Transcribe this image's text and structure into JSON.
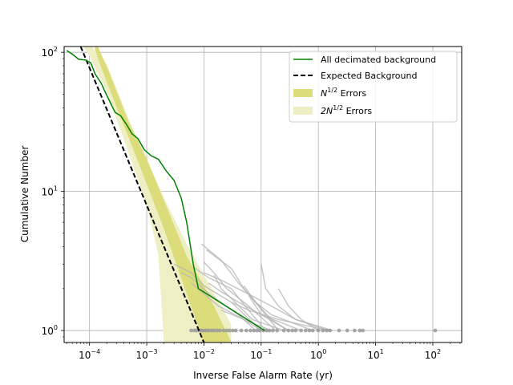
{
  "chart_data": {
    "type": "line",
    "xlabel": "Inverse False Alarm Rate (yr)",
    "ylabel": "Cumulative Number",
    "xscale": "log",
    "yscale": "log",
    "xlim": [
      3.6e-05,
      320
    ],
    "ylim": [
      0.82,
      110
    ],
    "grid": true,
    "legend_position": "top-right",
    "x_ticks": [
      {
        "value": 0.0001,
        "mantissa": "10",
        "exp": "−4"
      },
      {
        "value": 0.001,
        "mantissa": "10",
        "exp": "−3"
      },
      {
        "value": 0.01,
        "mantissa": "10",
        "exp": "−2"
      },
      {
        "value": 0.1,
        "mantissa": "10",
        "exp": "−1"
      },
      {
        "value": 1,
        "mantissa": "10",
        "exp": "0"
      },
      {
        "value": 10,
        "mantissa": "10",
        "exp": "1"
      },
      {
        "value": 100,
        "mantissa": "10",
        "exp": "2"
      }
    ],
    "y_ticks": [
      {
        "value": 1,
        "mantissa": "10",
        "exp": "0"
      },
      {
        "value": 10,
        "mantissa": "10",
        "exp": "1"
      },
      {
        "value": 100,
        "mantissa": "10",
        "exp": "2"
      }
    ],
    "legend": [
      {
        "key": "green",
        "label": "All decimated background"
      },
      {
        "key": "dashed",
        "label": "Expected Background"
      },
      {
        "key": "band1",
        "label_base": "N",
        "label_sup": "1/2",
        "label_rest": " Errors"
      },
      {
        "key": "band2",
        "label_base": "2N",
        "label_sup": "1/2",
        "label_rest": " Errors"
      }
    ],
    "colors": {
      "green": "#008000",
      "expected": "#000000",
      "band1": "#dcdc7a",
      "band2": "#efefc6",
      "gray": "#b4b4b4",
      "grid": "#b0b0b0"
    },
    "series": [
      {
        "key": "green",
        "points": [
          [
            4e-05,
            103
          ],
          [
            5e-05,
            97
          ],
          [
            6.5e-05,
            89
          ],
          [
            8.5e-05,
            88
          ],
          [
            0.000105,
            84
          ],
          [
            0.000125,
            70
          ],
          [
            0.00016,
            60
          ],
          [
            0.0002,
            49
          ],
          [
            0.00028,
            37
          ],
          [
            0.00035,
            35
          ],
          [
            0.00045,
            30
          ],
          [
            0.00055,
            26
          ],
          [
            0.0007,
            24
          ],
          [
            0.0009,
            20
          ],
          [
            0.0012,
            18
          ],
          [
            0.0016,
            17
          ],
          [
            0.0022,
            14
          ],
          [
            0.003,
            12
          ],
          [
            0.004,
            9
          ],
          [
            0.005,
            6
          ],
          [
            0.0065,
            3
          ],
          [
            0.008,
            2
          ],
          [
            0.115,
            1
          ]
        ]
      },
      {
        "key": "expected",
        "points": [
          [
            7e-05,
            110
          ],
          [
            0.01,
            0.82
          ]
        ]
      }
    ],
    "band_1sigma": [
      [
        0.000125,
        104.9,
        115.1
      ],
      [
        0.00014,
        90.4,
        109.6
      ],
      [
        0.0002,
        61.1,
        78.9
      ],
      [
        0.0005,
        23.5,
        30.5
      ],
      [
        0.001,
        11.3,
        17.2
      ],
      [
        0.002,
        5.38,
        8.62
      ],
      [
        0.005,
        1.83,
        3.42
      ],
      [
        0.01,
        0.82,
        2.1
      ],
      [
        0.025,
        0.82,
        0.97
      ],
      [
        0.03,
        0.82,
        0.82
      ]
    ],
    "band_2sigma": [
      [
        8e-05,
        108,
        135
      ],
      [
        0.0001,
        94,
        115
      ],
      [
        0.0002,
        52,
        82
      ],
      [
        0.0005,
        18,
        32
      ],
      [
        0.001,
        8,
        17
      ],
      [
        0.0016,
        3.5,
        11
      ],
      [
        0.002,
        0.82,
        9
      ],
      [
        0.005,
        0.82,
        4.2
      ],
      [
        0.01,
        0.82,
        2.5
      ],
      [
        0.02,
        0.82,
        1.5
      ],
      [
        0.03,
        0.82,
        1.1
      ]
    ],
    "decimated_series": [
      [
        [
          0.009,
          4.2
        ],
        [
          0.02,
          3.2
        ],
        [
          0.04,
          2.2
        ],
        [
          0.08,
          1.6
        ],
        [
          0.15,
          1.2
        ],
        [
          0.3,
          1
        ]
      ],
      [
        [
          0.011,
          3.8
        ],
        [
          0.03,
          2.8
        ],
        [
          0.05,
          2
        ],
        [
          0.09,
          1.5
        ],
        [
          0.2,
          1
        ]
      ],
      [
        [
          0.007,
          2.8
        ],
        [
          0.012,
          2.4
        ],
        [
          0.03,
          2
        ],
        [
          0.06,
          1.4
        ],
        [
          0.12,
          1
        ]
      ],
      [
        [
          0.006,
          2.2
        ],
        [
          0.009,
          1.9
        ],
        [
          0.018,
          1.5
        ],
        [
          0.05,
          1.2
        ],
        [
          0.15,
          1
        ]
      ],
      [
        [
          0.004,
          2.6
        ],
        [
          0.006,
          2.4
        ],
        [
          0.013,
          1.8
        ],
        [
          0.04,
          1.3
        ],
        [
          0.08,
          1
        ]
      ],
      [
        [
          0.003,
          3
        ],
        [
          0.006,
          2.6
        ],
        [
          0.01,
          2.1
        ],
        [
          0.03,
          1.6
        ],
        [
          0.1,
          1
        ]
      ],
      [
        [
          0.01,
          3.1
        ],
        [
          0.015,
          2.6
        ],
        [
          0.025,
          2
        ],
        [
          0.06,
          1.5
        ],
        [
          0.18,
          1
        ]
      ],
      [
        [
          0.015,
          2.5
        ],
        [
          0.02,
          2
        ],
        [
          0.03,
          1.7
        ],
        [
          0.07,
          1.2
        ],
        [
          0.25,
          1
        ]
      ],
      [
        [
          0.012,
          2.2
        ],
        [
          0.02,
          1.9
        ],
        [
          0.04,
          1.6
        ],
        [
          0.1,
          1.3
        ],
        [
          0.5,
          1
        ]
      ],
      [
        [
          0.05,
          2.1
        ],
        [
          0.08,
          1.6
        ],
        [
          0.15,
          1.3
        ],
        [
          0.8,
          1
        ]
      ],
      [
        [
          0.1,
          3
        ],
        [
          0.12,
          2
        ],
        [
          0.2,
          1.5
        ],
        [
          0.4,
          1.2
        ],
        [
          1.5,
          1
        ]
      ],
      [
        [
          0.2,
          2
        ],
        [
          0.3,
          1.5
        ],
        [
          0.5,
          1.2
        ],
        [
          1,
          1
        ]
      ],
      [
        [
          0.03,
          1.6
        ],
        [
          0.06,
          1.4
        ],
        [
          0.2,
          1.2
        ],
        [
          1.5,
          1
        ]
      ],
      [
        [
          0.06,
          1.8
        ],
        [
          0.1,
          1.3
        ],
        [
          0.3,
          1
        ]
      ],
      [
        [
          0.02,
          1.4
        ],
        [
          0.05,
          1.2
        ],
        [
          0.1,
          1
        ]
      ],
      [
        [
          0.01,
          2.6
        ],
        [
          0.02,
          2.3
        ],
        [
          0.05,
          1.9
        ],
        [
          0.15,
          1.5
        ],
        [
          0.4,
          1.2
        ],
        [
          1.8,
          1
        ]
      ]
    ],
    "loudest_points": [
      0.006,
      0.0068,
      0.0075,
      0.0083,
      0.009,
      0.0098,
      0.0108,
      0.012,
      0.0135,
      0.015,
      0.017,
      0.019,
      0.022,
      0.025,
      0.028,
      0.032,
      0.036,
      0.045,
      0.055,
      0.065,
      0.075,
      0.085,
      0.095,
      0.11,
      0.125,
      0.14,
      0.16,
      0.19,
      0.25,
      0.3,
      0.35,
      0.4,
      0.5,
      0.6,
      0.7,
      0.8,
      1.0,
      1.2,
      1.4,
      1.6,
      2.3,
      3.2,
      4.3,
      5.3,
      6.0,
      110
    ]
  }
}
